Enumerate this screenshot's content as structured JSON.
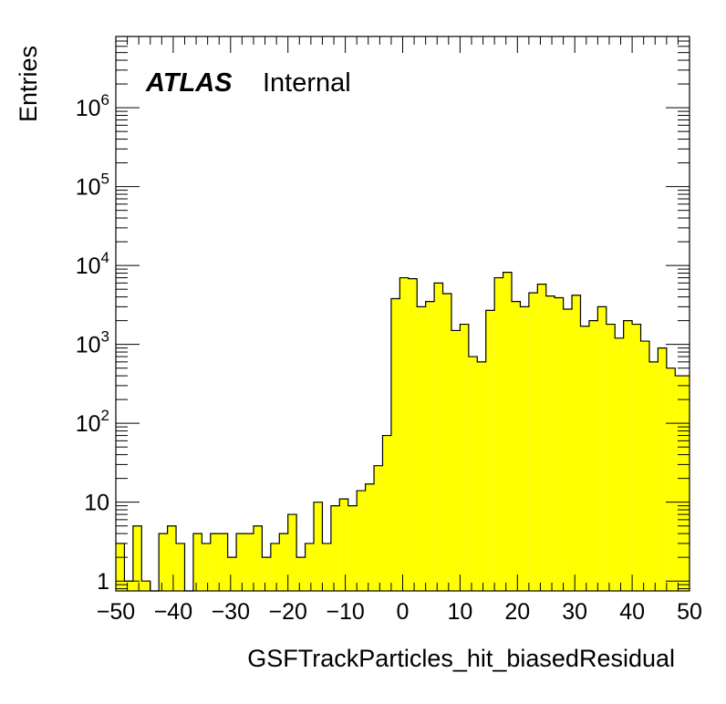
{
  "header": {
    "atlas_label": "ATLAS",
    "status_label": "Internal"
  },
  "chart_data": {
    "type": "histogram",
    "xlabel": "GSFTrackParticles_hit_biasedResidual",
    "ylabel": "Entries",
    "xlim": [
      -50,
      50
    ],
    "ylim": [
      0.75,
      8000000
    ],
    "y_scale": "log",
    "bin_width": 1.5,
    "x_ticks": [
      -50,
      -40,
      -30,
      -20,
      -10,
      0,
      10,
      20,
      30,
      40,
      50
    ],
    "x_tick_labels": [
      "−50",
      "−40",
      "−30",
      "−20",
      "−10",
      "0",
      "10",
      "20",
      "30",
      "40",
      "50"
    ],
    "y_ticks": [
      {
        "value": 1,
        "base": "1",
        "exp": ""
      },
      {
        "value": 10,
        "base": "10",
        "exp": ""
      },
      {
        "value": 100,
        "base": "10",
        "exp": "2"
      },
      {
        "value": 1000,
        "base": "10",
        "exp": "3"
      },
      {
        "value": 10000,
        "base": "10",
        "exp": "4"
      },
      {
        "value": 100000,
        "base": "10",
        "exp": "5"
      },
      {
        "value": 1000000,
        "base": "10",
        "exp": "6"
      }
    ],
    "fill_color": "#ffff00",
    "line_color": "#000000",
    "grid": false,
    "bin_edges": [
      -50.0,
      -48.5,
      -47.0,
      -45.5,
      -44.0,
      -42.5,
      -41.0,
      -39.5,
      -38.0,
      -36.5,
      -35.0,
      -33.5,
      -32.0,
      -30.5,
      -29.0,
      -27.5,
      -26.0,
      -24.5,
      -23.0,
      -21.5,
      -20.0,
      -18.5,
      -17.0,
      -15.5,
      -14.0,
      -12.5,
      -11.0,
      -9.5,
      -8.0,
      -6.5,
      -5.0,
      -3.5,
      -2.0,
      -0.5,
      1.0,
      2.5,
      4.0,
      5.5,
      7.0,
      8.5,
      10.0,
      11.5,
      13.0,
      14.5,
      16.0,
      17.5,
      19.0,
      20.5,
      22.0,
      23.5,
      25.0,
      26.5,
      28.0,
      29.5,
      31.0,
      32.5,
      34.0,
      35.5,
      37.0,
      38.5,
      40.0,
      41.5,
      43.0,
      44.5,
      46.0,
      47.5,
      49.0,
      50.0
    ],
    "values": [
      3,
      1,
      5,
      1,
      0,
      4,
      5,
      3,
      0,
      4,
      3,
      4,
      4,
      2,
      4,
      4,
      5,
      2,
      3,
      4,
      7,
      2,
      3,
      10,
      3,
      9,
      11,
      9,
      14,
      17,
      29,
      70,
      3800,
      7000,
      6800,
      3000,
      3500,
      6000,
      4400,
      1500,
      1800,
      700,
      600,
      2700,
      7000,
      8200,
      3500,
      3000,
      4500,
      5800,
      4100,
      3900,
      2800,
      4200,
      1700,
      2000,
      3000,
      1800,
      1200,
      2000,
      1800,
      1100,
      600,
      900,
      500,
      400,
      400
    ]
  }
}
